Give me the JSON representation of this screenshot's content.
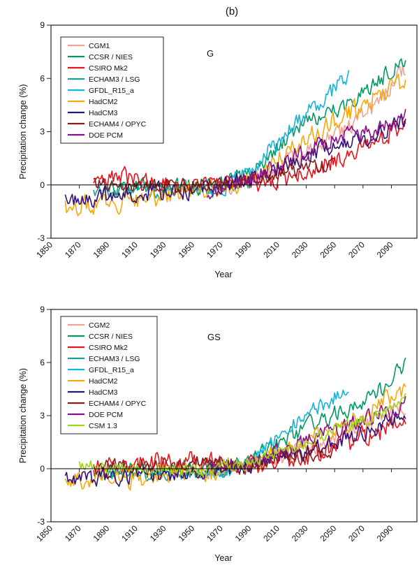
{
  "figure_label": "(b)",
  "chart_data": [
    {
      "type": "line",
      "panel_label": "G",
      "title": "",
      "xlabel": "Year",
      "ylabel": "Precipitation change (%)",
      "xlim": [
        1850,
        2108
      ],
      "ylim": [
        -3,
        9
      ],
      "xticks": [
        1850,
        1870,
        1890,
        1910,
        1930,
        1950,
        1970,
        1990,
        2010,
        2030,
        2050,
        2070,
        2090
      ],
      "yticks": [
        -3,
        0,
        3,
        6,
        9
      ],
      "zero_line": true,
      "legend_position": "top-left",
      "series": [
        {
          "name": "CGM1",
          "color": "#f4a191",
          "start": 1960,
          "end": 2100,
          "trend": [
            [
              1960,
              -0.3
            ],
            [
              1990,
              0.2
            ],
            [
              2030,
              1.8
            ],
            [
              2060,
              3.3
            ],
            [
              2080,
              4.5
            ],
            [
              2100,
              6.6
            ]
          ],
          "noise": 0.45,
          "seed": 1
        },
        {
          "name": "CCSR / NIES",
          "color": "#009966",
          "start": 1890,
          "end": 2100,
          "trend": [
            [
              1890,
              -0.2
            ],
            [
              1960,
              0.0
            ],
            [
              1990,
              0.6
            ],
            [
              2010,
              2.2
            ],
            [
              2030,
              3.6
            ],
            [
              2060,
              4.6
            ],
            [
              2080,
              5.8
            ],
            [
              2100,
              7.2
            ]
          ],
          "noise": 0.45,
          "seed": 2
        },
        {
          "name": "CSIRO Mk2",
          "color": "#e8141c",
          "start": 1880,
          "end": 2100,
          "trend": [
            [
              1880,
              0.0
            ],
            [
              1900,
              0.4
            ],
            [
              1930,
              0.0
            ],
            [
              1960,
              0.0
            ],
            [
              1990,
              0.0
            ],
            [
              2020,
              0.5
            ],
            [
              2050,
              1.4
            ],
            [
              2080,
              2.6
            ],
            [
              2100,
              3.2
            ]
          ],
          "noise": 0.5,
          "seed": 3
        },
        {
          "name": "ECHAM3 / LSG",
          "color": "#1a9e96",
          "start": 1880,
          "end": 1990,
          "trend": [
            [
              1880,
              -0.4
            ],
            [
              1930,
              -0.3
            ],
            [
              1960,
              -0.2
            ],
            [
              1990,
              0.2
            ]
          ],
          "noise": 0.35,
          "seed": 4
        },
        {
          "name": "GFDL_R15_a",
          "color": "#14b4d8",
          "start": 1960,
          "end": 2060,
          "trend": [
            [
              1960,
              -0.6
            ],
            [
              1980,
              0.2
            ],
            [
              2000,
              1.6
            ],
            [
              2020,
              3.2
            ],
            [
              2040,
              4.6
            ],
            [
              2060,
              6.2
            ]
          ],
          "noise": 0.45,
          "seed": 5
        },
        {
          "name": "HadCM2",
          "color": "#f5a80d",
          "start": 1860,
          "end": 2100,
          "trend": [
            [
              1860,
              -1.2
            ],
            [
              1890,
              -1.0
            ],
            [
              1920,
              -0.8
            ],
            [
              1950,
              -0.3
            ],
            [
              1980,
              0.0
            ],
            [
              2000,
              1.0
            ],
            [
              2030,
              2.6
            ],
            [
              2060,
              4.0
            ],
            [
              2080,
              5.0
            ],
            [
              2100,
              5.8
            ]
          ],
          "noise": 0.5,
          "seed": 6
        },
        {
          "name": "HadCM3",
          "color": "#32127a",
          "start": 1860,
          "end": 2100,
          "trend": [
            [
              1860,
              -0.9
            ],
            [
              1900,
              -0.5
            ],
            [
              1950,
              -0.3
            ],
            [
              1990,
              0.3
            ],
            [
              2020,
              1.4
            ],
            [
              2050,
              2.2
            ],
            [
              2080,
              2.8
            ],
            [
              2100,
              3.8
            ]
          ],
          "noise": 0.45,
          "seed": 7
        },
        {
          "name": "ECHAM4 / OPYC",
          "color": "#8c1a1a",
          "start": 1880,
          "end": 2050,
          "trend": [
            [
              1880,
              0.0
            ],
            [
              1950,
              0.0
            ],
            [
              1990,
              0.2
            ],
            [
              2020,
              0.8
            ],
            [
              2050,
              1.2
            ]
          ],
          "noise": 0.35,
          "seed": 8
        },
        {
          "name": "DOE PCM",
          "color": "#8a0f8a",
          "start": 1960,
          "end": 2100,
          "trend": [
            [
              1960,
              -0.3
            ],
            [
              1990,
              0.3
            ],
            [
              2020,
              1.6
            ],
            [
              2050,
              2.6
            ],
            [
              2080,
              3.0
            ],
            [
              2100,
              3.8
            ]
          ],
          "noise": 0.45,
          "seed": 9
        }
      ]
    },
    {
      "type": "line",
      "panel_label": "GS",
      "title": "",
      "xlabel": "Year",
      "ylabel": "Precipitation change (%)",
      "xlim": [
        1850,
        2108
      ],
      "ylim": [
        -3,
        9
      ],
      "xticks": [
        1850,
        1870,
        1890,
        1910,
        1930,
        1950,
        1970,
        1990,
        2010,
        2030,
        2050,
        2070,
        2090
      ],
      "yticks": [
        -3,
        0,
        3,
        6,
        9
      ],
      "zero_line": true,
      "legend_position": "top-left",
      "series": [
        {
          "name": "CGM2",
          "color": "#f4a191",
          "start": 1960,
          "end": 2100,
          "trend": [
            [
              1960,
              -0.2
            ],
            [
              1990,
              0.2
            ],
            [
              2030,
              1.0
            ],
            [
              2060,
              2.0
            ],
            [
              2100,
              3.6
            ]
          ],
          "noise": 0.45,
          "seed": 11
        },
        {
          "name": "CCSR / NIES",
          "color": "#009966",
          "start": 1890,
          "end": 2100,
          "trend": [
            [
              1890,
              -0.2
            ],
            [
              1960,
              0.0
            ],
            [
              1990,
              0.5
            ],
            [
              2010,
              1.4
            ],
            [
              2030,
              2.4
            ],
            [
              2060,
              3.4
            ],
            [
              2080,
              4.4
            ],
            [
              2100,
              5.8
            ]
          ],
          "noise": 0.45,
          "seed": 12
        },
        {
          "name": "CSIRO Mk2",
          "color": "#e8141c",
          "start": 1880,
          "end": 2100,
          "trend": [
            [
              1880,
              0.1
            ],
            [
              1920,
              0.3
            ],
            [
              1950,
              0.4
            ],
            [
              1980,
              0.1
            ],
            [
              2010,
              0.4
            ],
            [
              2040,
              1.0
            ],
            [
              2070,
              1.8
            ],
            [
              2100,
              2.6
            ]
          ],
          "noise": 0.55,
          "seed": 13
        },
        {
          "name": "ECHAM3 / LSG",
          "color": "#1a9e96",
          "start": 1880,
          "end": 1990,
          "trend": [
            [
              1880,
              -0.3
            ],
            [
              1930,
              -0.3
            ],
            [
              1960,
              -0.2
            ],
            [
              1990,
              0.1
            ]
          ],
          "noise": 0.35,
          "seed": 14
        },
        {
          "name": "GFDL_R15_a",
          "color": "#14b4d8",
          "start": 1960,
          "end": 2060,
          "trend": [
            [
              1960,
              -0.4
            ],
            [
              1980,
              0.0
            ],
            [
              2000,
              1.0
            ],
            [
              2020,
              2.4
            ],
            [
              2040,
              3.6
            ],
            [
              2060,
              4.4
            ]
          ],
          "noise": 0.4,
          "seed": 15
        },
        {
          "name": "HadCM2",
          "color": "#f5a80d",
          "start": 1860,
          "end": 2100,
          "trend": [
            [
              1860,
              -0.6
            ],
            [
              1900,
              -0.6
            ],
            [
              1950,
              -0.3
            ],
            [
              1990,
              0.2
            ],
            [
              2020,
              1.2
            ],
            [
              2060,
              2.6
            ],
            [
              2100,
              4.6
            ]
          ],
          "noise": 0.5,
          "seed": 16
        },
        {
          "name": "HadCM3",
          "color": "#32127a",
          "start": 1860,
          "end": 2100,
          "trend": [
            [
              1860,
              -0.5
            ],
            [
              1900,
              -0.4
            ],
            [
              1950,
              -0.2
            ],
            [
              1990,
              0.2
            ],
            [
              2030,
              1.0
            ],
            [
              2060,
              1.8
            ],
            [
              2100,
              3.0
            ]
          ],
          "noise": 0.45,
          "seed": 17
        },
        {
          "name": "ECHAM4 / OPYC",
          "color": "#8c1a1a",
          "start": 1880,
          "end": 2050,
          "trend": [
            [
              1880,
              0.1
            ],
            [
              1950,
              0.3
            ],
            [
              1990,
              0.3
            ],
            [
              2020,
              0.6
            ],
            [
              2050,
              1.0
            ]
          ],
          "noise": 0.35,
          "seed": 18
        },
        {
          "name": "DOE PCM",
          "color": "#8a0f8a",
          "start": 1960,
          "end": 2100,
          "trend": [
            [
              1960,
              -0.1
            ],
            [
              1990,
              0.3
            ],
            [
              2020,
              1.2
            ],
            [
              2050,
              2.2
            ],
            [
              2080,
              3.0
            ],
            [
              2100,
              3.6
            ]
          ],
          "noise": 0.45,
          "seed": 19
        },
        {
          "name": "CSM 1.3",
          "color": "#9ed414",
          "start": 1870,
          "end": 2100,
          "trend": [
            [
              1870,
              0.2
            ],
            [
              1920,
              0.0
            ],
            [
              1960,
              -0.1
            ],
            [
              1990,
              0.3
            ],
            [
              2020,
              1.2
            ],
            [
              2050,
              2.2
            ],
            [
              2080,
              3.0
            ],
            [
              2100,
              4.0
            ]
          ],
          "noise": 0.3,
          "seed": 20
        }
      ]
    }
  ]
}
